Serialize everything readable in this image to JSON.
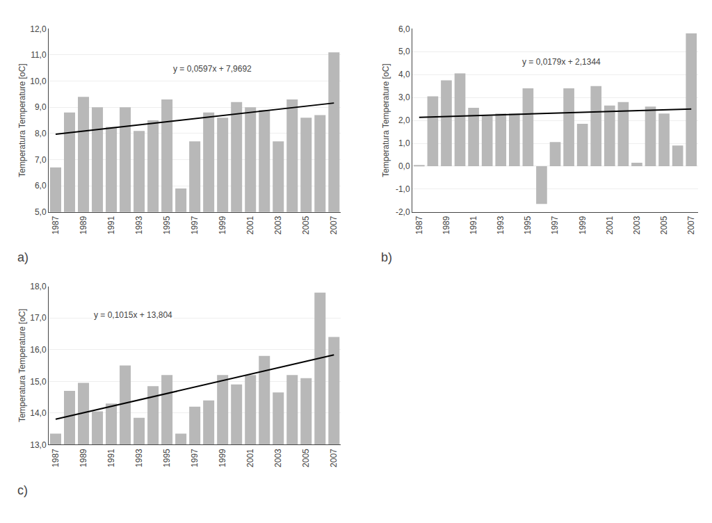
{
  "chart_data": [
    {
      "type": "bar",
      "title": "a)",
      "categories": [
        "1987",
        null,
        "1989",
        null,
        "1991",
        null,
        "1993",
        null,
        "1995",
        null,
        "1997",
        null,
        "1999",
        null,
        "2001",
        null,
        "2003",
        null,
        "2005",
        null,
        "2007"
      ],
      "values": [
        6.7,
        8.8,
        9.4,
        9.0,
        8.25,
        9.0,
        8.1,
        8.5,
        9.3,
        5.9,
        7.7,
        8.8,
        8.6,
        9.2,
        9.0,
        8.9,
        7.7,
        9.3,
        8.6,
        8.7,
        11.1
      ],
      "color": "#b8b8b8",
      "ylabel": "Temperatura Temperature [oC]",
      "ylim": [
        5.0,
        12.0
      ],
      "yticks": [
        {
          "value": 5.0,
          "label": "5,0"
        },
        {
          "value": 6.0,
          "label": "6,0"
        },
        {
          "value": 7.0,
          "label": "7,0"
        },
        {
          "value": 8.0,
          "label": "8,0"
        },
        {
          "value": 9.0,
          "label": "9,0"
        },
        {
          "value": 10.0,
          "label": "10,0"
        },
        {
          "value": 11.0,
          "label": "11,0"
        },
        {
          "value": 12.0,
          "label": "12,0"
        }
      ],
      "grid": true,
      "trend": {
        "slope": 0.0597,
        "intercept": 7.9692,
        "color": "#000000"
      },
      "annotations": [
        "y = 0,0597x + 7,9692"
      ]
    },
    {
      "type": "bar",
      "title": "b)",
      "categories": [
        "1987",
        null,
        "1989",
        null,
        "1991",
        null,
        "1993",
        null,
        "1995",
        null,
        "1997",
        null,
        "1999",
        null,
        "2001",
        null,
        "2003",
        null,
        "2005",
        null,
        "2007"
      ],
      "values": [
        0.05,
        3.05,
        3.75,
        4.05,
        2.55,
        2.2,
        2.3,
        2.3,
        3.4,
        -1.65,
        1.05,
        3.4,
        1.85,
        3.5,
        2.65,
        2.8,
        0.15,
        2.6,
        2.3,
        0.9,
        5.8
      ],
      "color": "#b8b8b8",
      "ylabel": "Temperatura Temperature [oC]",
      "ylim": [
        -2.0,
        6.0
      ],
      "yticks": [
        {
          "value": -2.0,
          "label": "-2,0"
        },
        {
          "value": -1.0,
          "label": "-1,0"
        },
        {
          "value": 0.0,
          "label": "0,0"
        },
        {
          "value": 1.0,
          "label": "1,0"
        },
        {
          "value": 2.0,
          "label": "2,0"
        },
        {
          "value": 3.0,
          "label": "3,0"
        },
        {
          "value": 4.0,
          "label": "4,0"
        },
        {
          "value": 5.0,
          "label": "5,0"
        },
        {
          "value": 6.0,
          "label": "6,0"
        }
      ],
      "grid": true,
      "trend": {
        "slope": 0.0179,
        "intercept": 2.1344,
        "color": "#000000"
      },
      "annotations": [
        "y = 0,0179x + 2,1344"
      ]
    },
    {
      "type": "bar",
      "title": "c)",
      "categories": [
        "1987",
        null,
        "1989",
        null,
        "1991",
        null,
        "1993",
        null,
        "1995",
        null,
        "1997",
        null,
        "1999",
        null,
        "2001",
        null,
        "2003",
        null,
        "2005",
        null,
        "2007"
      ],
      "values": [
        13.35,
        14.7,
        14.95,
        14.05,
        14.3,
        15.5,
        13.85,
        14.85,
        15.2,
        13.35,
        14.2,
        14.4,
        15.2,
        14.9,
        15.2,
        15.8,
        14.65,
        15.2,
        15.1,
        17.8,
        16.4
      ],
      "color": "#b8b8b8",
      "ylabel": "Temperatura Temperature [oC]",
      "ylim": [
        13.0,
        18.0
      ],
      "yticks": [
        {
          "value": 13.0,
          "label": "13,0"
        },
        {
          "value": 14.0,
          "label": "14,0"
        },
        {
          "value": 15.0,
          "label": "15,0"
        },
        {
          "value": 16.0,
          "label": "16,0"
        },
        {
          "value": 17.0,
          "label": "17,0"
        },
        {
          "value": 18.0,
          "label": "18,0"
        }
      ],
      "grid": true,
      "trend": {
        "slope": 0.1015,
        "intercept": 13.804,
        "color": "#000000"
      },
      "annotations": [
        "y = 0,1015x + 13,804"
      ]
    }
  ]
}
